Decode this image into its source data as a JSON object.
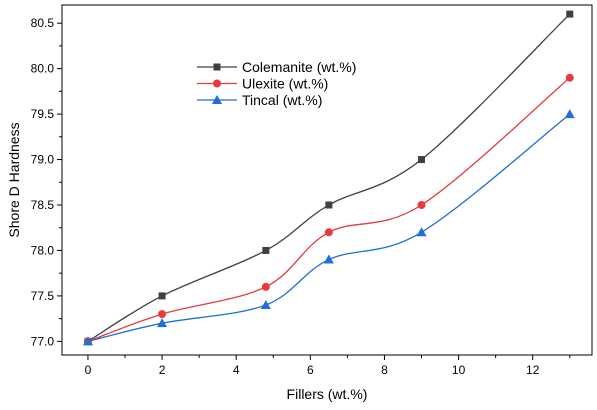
{
  "chart_data": {
    "type": "line",
    "title": "",
    "xlabel": "Fillers (wt.%)",
    "ylabel": "Shore D Hardness",
    "xlim": [
      -0.7,
      13.6
    ],
    "ylim": [
      76.85,
      80.7
    ],
    "x_ticks": [
      0,
      2,
      4,
      6,
      8,
      10,
      12
    ],
    "y_ticks": [
      77.0,
      77.5,
      78.0,
      78.5,
      79.0,
      79.5,
      80.0,
      80.5
    ],
    "x_tick_labels": [
      "0",
      "2",
      "4",
      "6",
      "8",
      "10",
      "12"
    ],
    "y_tick_labels": [
      "77.0",
      "77.5",
      "78.0",
      "78.5",
      "79.0",
      "79.5",
      "80.0",
      "80.5"
    ],
    "grid": false,
    "legend_placement": "upper-left",
    "series": [
      {
        "name": "Colemanite (wt.%)",
        "color": "#404040",
        "marker": "square",
        "x": [
          0,
          2,
          4.8,
          6.5,
          9,
          13
        ],
        "values": [
          77.0,
          77.5,
          78.0,
          78.5,
          79.0,
          80.6
        ]
      },
      {
        "name": "Ulexite (wt.%)",
        "color": "#e8393b",
        "marker": "circle",
        "x": [
          0,
          2,
          4.8,
          6.5,
          9,
          13
        ],
        "values": [
          77.0,
          77.3,
          77.6,
          78.2,
          78.5,
          79.9
        ]
      },
      {
        "name": "Tincal (wt.%)",
        "color": "#1f6fd6",
        "marker": "triangle",
        "x": [
          0,
          2,
          4.8,
          6.5,
          9,
          13
        ],
        "values": [
          77.0,
          77.2,
          77.4,
          77.9,
          78.2,
          79.5
        ]
      }
    ]
  }
}
